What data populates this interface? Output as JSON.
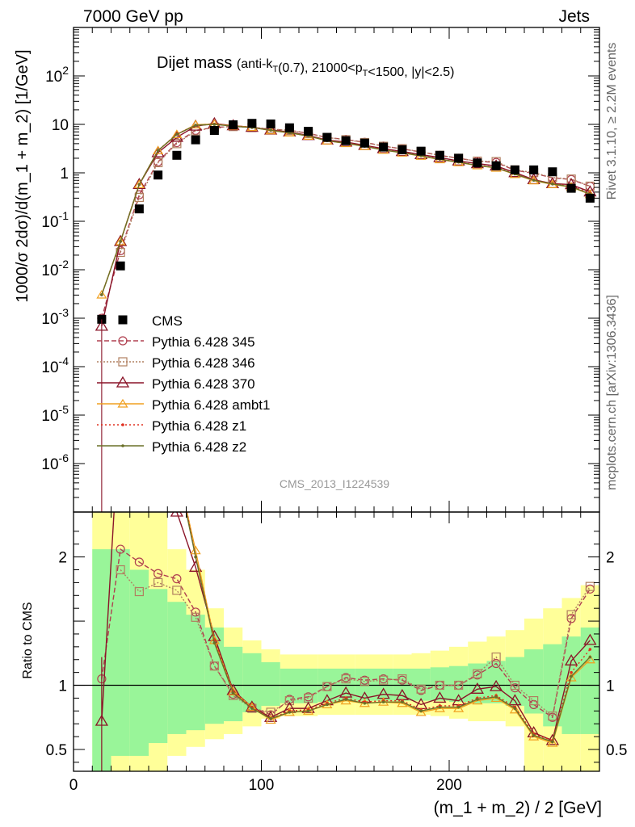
{
  "header": {
    "left": "7000 GeV pp",
    "right": "Jets"
  },
  "side_labels": {
    "rivet": "Rivet 3.1.10, ≥ 2.2M events",
    "mcplots": "mcplots.cern.ch [arXiv:1306.3436]"
  },
  "watermark": "CMS_2013_I1224539",
  "chart_data": {
    "type": "line",
    "title_main": "Dijet mass",
    "title_sub": "(anti-kT(0.7), 21000<pT<1500, |y|<2.5)",
    "xlabel": "(m_1 + m_2) / 2 [GeV]",
    "ylabel": "1000/σ 2dσ)/d(m_1 + m_2) [1/GeV]",
    "ylabel_ratio": "Ratio to CMS",
    "xlim": [
      0,
      280
    ],
    "ylim": [
      1e-07,
      1000
    ],
    "yscale": "log",
    "ratio_ylim": [
      0.33,
      2.35
    ],
    "x_ticks": [
      0,
      100,
      200
    ],
    "y_ticks": [
      "10^-6",
      "10^-5",
      "10^-4",
      "10^-3",
      "10^-2",
      "10^-1",
      "1",
      "10",
      "10^2"
    ],
    "ratio_ticks": [
      0.5,
      1,
      2
    ],
    "x": [
      15,
      25,
      35,
      45,
      55,
      65,
      75,
      85,
      95,
      105,
      115,
      125,
      135,
      145,
      155,
      165,
      175,
      185,
      195,
      205,
      215,
      225,
      235,
      245,
      255,
      265,
      275
    ],
    "bin_edges": [
      10,
      20,
      30,
      40,
      50,
      60,
      70,
      80,
      90,
      100,
      110,
      120,
      130,
      140,
      150,
      160,
      170,
      180,
      190,
      200,
      210,
      220,
      230,
      240,
      250,
      260,
      270,
      280
    ],
    "legend": [
      {
        "name": "CMS",
        "color": "#000000",
        "marker": "square-filled",
        "dash": "none"
      },
      {
        "name": "Pythia 6.428 345",
        "color": "#b04050",
        "marker": "circle",
        "dash": "6,3"
      },
      {
        "name": "Pythia 6.428 346",
        "color": "#b08060",
        "marker": "square",
        "dash": "2,2"
      },
      {
        "name": "Pythia 6.428 370",
        "color": "#8a1428",
        "marker": "triangle",
        "dash": "none"
      },
      {
        "name": "Pythia 6.428 ambt1",
        "color": "#f0a020",
        "marker": "triangle-small",
        "dash": "none"
      },
      {
        "name": "Pythia 6.428 z1",
        "color": "#e03020",
        "marker": "dot",
        "dash": "2,3"
      },
      {
        "name": "Pythia 6.428 z2",
        "color": "#6a7028",
        "marker": "dot",
        "dash": "none"
      }
    ],
    "data_values": [
      0.00095,
      0.012,
      0.18,
      0.9,
      2.3,
      4.8,
      7.5,
      9.8,
      10.5,
      10.2,
      8.5,
      7.2,
      5.4,
      4.6,
      4.1,
      3.4,
      3.0,
      2.8,
      2.3,
      2.0,
      1.6,
      1.4,
      1.15,
      1.15,
      1.05,
      0.48,
      0.3
    ],
    "ratio_band_inner": [
      [
        0.33,
        2.06
      ],
      [
        0.45,
        2.06
      ],
      [
        0.45,
        1.9
      ],
      [
        0.55,
        1.75
      ],
      [
        0.62,
        1.65
      ],
      [
        0.65,
        1.55
      ],
      [
        0.7,
        1.45
      ],
      [
        0.72,
        1.3
      ],
      [
        0.79,
        1.25
      ],
      [
        0.84,
        1.18
      ],
      [
        0.86,
        1.13
      ],
      [
        0.86,
        1.13
      ],
      [
        0.87,
        1.13
      ],
      [
        0.88,
        1.13
      ],
      [
        0.88,
        1.13
      ],
      [
        0.88,
        1.13
      ],
      [
        0.88,
        1.13
      ],
      [
        0.88,
        1.13
      ],
      [
        0.88,
        1.14
      ],
      [
        0.87,
        1.15
      ],
      [
        0.86,
        1.17
      ],
      [
        0.86,
        1.19
      ],
      [
        0.84,
        1.22
      ],
      [
        0.78,
        1.28
      ],
      [
        0.68,
        1.32
      ],
      [
        0.62,
        1.38
      ],
      [
        0.62,
        1.45
      ]
    ],
    "ratio_band_outer": [
      [
        0.33,
        2.35
      ],
      [
        0.33,
        2.35
      ],
      [
        0.33,
        2.35
      ],
      [
        0.33,
        2.35
      ],
      [
        0.45,
        2.06
      ],
      [
        0.52,
        1.9
      ],
      [
        0.58,
        1.6
      ],
      [
        0.62,
        1.45
      ],
      [
        0.68,
        1.35
      ],
      [
        0.74,
        1.28
      ],
      [
        0.76,
        1.24
      ],
      [
        0.76,
        1.24
      ],
      [
        0.77,
        1.24
      ],
      [
        0.77,
        1.24
      ],
      [
        0.77,
        1.24
      ],
      [
        0.77,
        1.24
      ],
      [
        0.77,
        1.24
      ],
      [
        0.77,
        1.25
      ],
      [
        0.76,
        1.27
      ],
      [
        0.74,
        1.3
      ],
      [
        0.72,
        1.34
      ],
      [
        0.72,
        1.38
      ],
      [
        0.68,
        1.43
      ],
      [
        0.33,
        1.52
      ],
      [
        0.33,
        1.6
      ],
      [
        0.33,
        1.68
      ],
      [
        0.33,
        1.78
      ]
    ],
    "series": [
      {
        "name": "Pythia 6.428 345",
        "ratio": [
          1.05,
          2.06,
          1.96,
          1.87,
          1.83,
          1.57,
          1.15,
          0.93,
          0.83,
          0.77,
          0.89,
          0.91,
          0.99,
          1.06,
          1.04,
          1.05,
          1.04,
          0.96,
          1.0,
          1.0,
          1.08,
          1.17,
          0.98,
          0.85,
          0.75,
          1.52,
          1.75
        ]
      },
      {
        "name": "Pythia 6.428 346",
        "ratio": [
          0.0,
          1.9,
          1.73,
          1.8,
          1.74,
          1.53,
          1.15,
          0.92,
          0.82,
          0.79,
          0.88,
          0.9,
          0.99,
          1.05,
          1.03,
          1.04,
          1.05,
          0.97,
          1.0,
          1.0,
          1.09,
          1.22,
          1.0,
          0.88,
          0.76,
          1.55,
          1.77
        ]
      },
      {
        "name": "Pythia 6.428 370",
        "ratio": [
          0.72,
          3.2,
          3.2,
          2.9,
          2.35,
          1.92,
          1.38,
          0.96,
          0.83,
          0.75,
          0.82,
          0.82,
          0.88,
          0.94,
          0.9,
          0.93,
          0.92,
          0.85,
          0.9,
          0.88,
          0.97,
          0.99,
          0.88,
          0.63,
          0.57,
          1.19,
          1.35
        ]
      },
      {
        "name": "Pythia 6.428 ambt1",
        "ratio": [
          3.2,
          3.2,
          3.2,
          3.2,
          2.7,
          2.05,
          1.35,
          0.95,
          0.83,
          0.73,
          0.79,
          0.8,
          0.85,
          0.88,
          0.86,
          0.87,
          0.86,
          0.79,
          0.82,
          0.82,
          0.88,
          0.9,
          0.81,
          0.6,
          0.55,
          1.06,
          1.2
        ]
      },
      {
        "name": "Pythia 6.428 z1",
        "ratio": [
          3.2,
          3.2,
          3.2,
          3.2,
          2.75,
          2.0,
          1.35,
          0.95,
          0.83,
          0.74,
          0.8,
          0.81,
          0.86,
          0.9,
          0.87,
          0.88,
          0.88,
          0.81,
          0.84,
          0.84,
          0.9,
          0.92,
          0.83,
          0.62,
          0.57,
          1.1,
          1.28
        ]
      },
      {
        "name": "Pythia 6.428 z2",
        "ratio": [
          3.2,
          3.2,
          3.2,
          3.2,
          2.7,
          2.0,
          1.33,
          0.94,
          0.82,
          0.74,
          0.79,
          0.8,
          0.85,
          0.89,
          0.86,
          0.87,
          0.87,
          0.8,
          0.83,
          0.83,
          0.89,
          0.91,
          0.82,
          0.61,
          0.56,
          1.07,
          1.22
        ]
      }
    ]
  }
}
